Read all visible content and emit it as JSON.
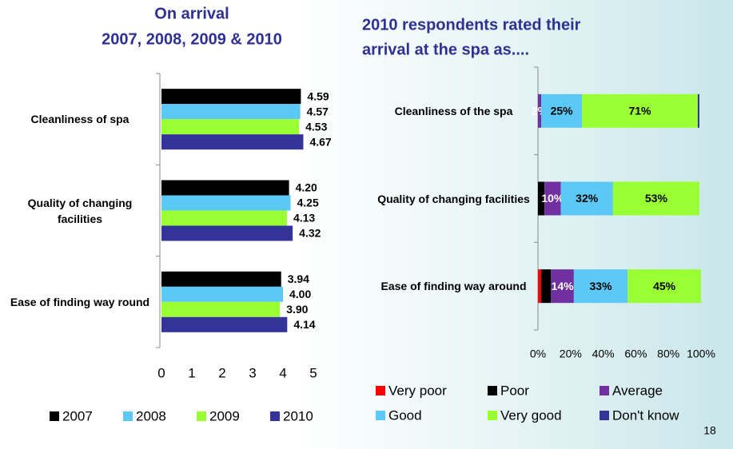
{
  "chart_data": [
    {
      "type": "grouped-hbar",
      "title": [
        "On arrival",
        "2007, 2008, 2009 & 2010"
      ],
      "categories": [
        "Cleanliness of spa",
        "Quality of changing facilities",
        "Ease of finding way round"
      ],
      "series": [
        {
          "name": "2007",
          "color": "#000000",
          "values": [
            4.59,
            4.2,
            3.94
          ],
          "value_labels": [
            "4.59",
            "4.20",
            "3.94"
          ]
        },
        {
          "name": "2008",
          "color": "#5bc8f5",
          "values": [
            4.57,
            4.25,
            4.0
          ],
          "value_labels": [
            "4.57",
            "4.25",
            "4.00"
          ]
        },
        {
          "name": "2009",
          "color": "#99ff33",
          "values": [
            4.53,
            4.13,
            3.9
          ],
          "value_labels": [
            "4.53",
            "4.13",
            "3.90"
          ]
        },
        {
          "name": "2010",
          "color": "#333399",
          "values": [
            4.67,
            4.32,
            4.14
          ],
          "value_labels": [
            "4.67",
            "4.32",
            "4.14"
          ]
        }
      ],
      "xlim": [
        0,
        5
      ],
      "xticks": [
        0,
        1,
        2,
        3,
        4,
        5
      ],
      "legend": "bottom"
    },
    {
      "type": "stacked-hbar",
      "title": [
        "2010 respondents rated their",
        "arrival at the spa as...."
      ],
      "categories": [
        "Cleanliness of the spa",
        "Quality of changing facilities",
        "Ease of finding way around"
      ],
      "series": [
        {
          "name": "Very poor",
          "color": "#ff0000",
          "values": [
            0,
            0,
            2
          ],
          "value_labels": [
            null,
            null,
            null
          ]
        },
        {
          "name": "Poor",
          "color": "#000000",
          "values": [
            0,
            4,
            6
          ],
          "value_labels": [
            null,
            null,
            null
          ]
        },
        {
          "name": "Average",
          "color": "#7030a0",
          "values": [
            2,
            10,
            14
          ],
          "value_labels": [
            "2%",
            "10%",
            "14%"
          ]
        },
        {
          "name": "Good",
          "color": "#5bc8f5",
          "values": [
            25,
            32,
            33
          ],
          "value_labels": [
            "25%",
            "32%",
            "33%"
          ]
        },
        {
          "name": "Very good",
          "color": "#99ff33",
          "values": [
            71,
            53,
            45
          ],
          "value_labels": [
            "71%",
            "53%",
            "45%"
          ]
        },
        {
          "name": "Don't know",
          "color": "#333399",
          "values": [
            1,
            0,
            0
          ],
          "value_labels": [
            null,
            null,
            null
          ]
        }
      ],
      "xlim": [
        0,
        100
      ],
      "xticks": [
        {
          "value": 0,
          "label": "0%"
        },
        {
          "value": 20,
          "label": "20%"
        },
        {
          "value": 40,
          "label": "40%"
        },
        {
          "value": 60,
          "label": "60%"
        },
        {
          "value": 80,
          "label": "80%"
        },
        {
          "value": 100,
          "label": "100%"
        }
      ],
      "legend": "bottom"
    }
  ],
  "page_number": "18"
}
